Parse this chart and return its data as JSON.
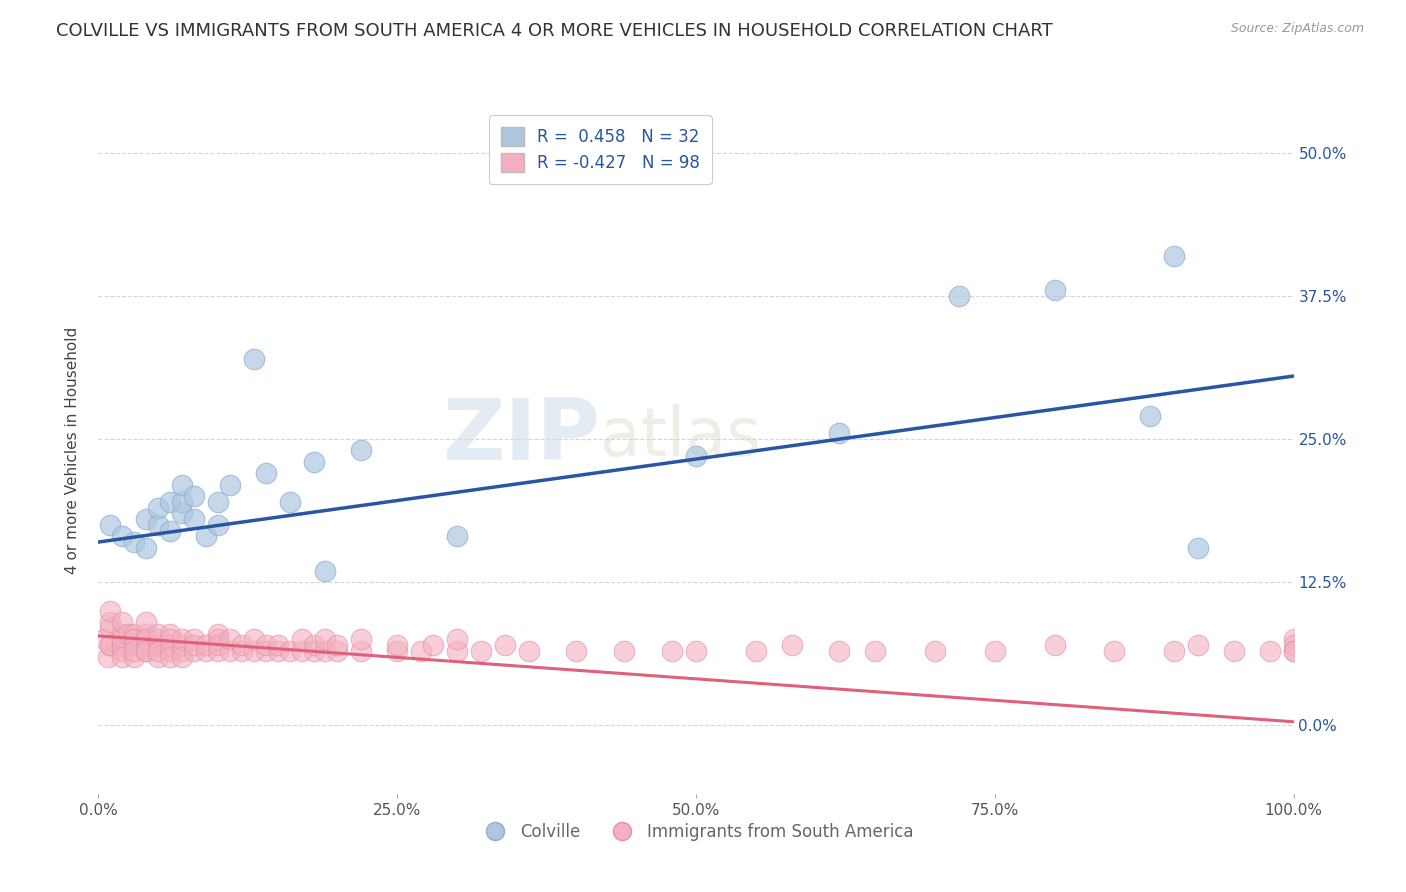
{
  "title": "COLVILLE VS IMMIGRANTS FROM SOUTH AMERICA 4 OR MORE VEHICLES IN HOUSEHOLD CORRELATION CHART",
  "source": "Source: ZipAtlas.com",
  "ylabel": "4 or more Vehicles in Household",
  "xlim": [
    0.0,
    1.0
  ],
  "ylim": [
    -0.06,
    0.54
  ],
  "xticks": [
    0.0,
    0.25,
    0.5,
    0.75,
    1.0
  ],
  "xtick_labels": [
    "0.0%",
    "25.0%",
    "50.0%",
    "75.0%",
    "100.0%"
  ],
  "yticks": [
    0.0,
    0.125,
    0.25,
    0.375,
    0.5
  ],
  "ytick_labels": [
    "0.0%",
    "12.5%",
    "25.0%",
    "37.5%",
    "50.0%"
  ],
  "blue_R": 0.458,
  "blue_N": 32,
  "pink_R": -0.427,
  "pink_N": 98,
  "blue_color": "#aec6e0",
  "blue_edge_color": "#8ab0d0",
  "blue_line_color": "#2955a3",
  "pink_color": "#f4b0c0",
  "pink_edge_color": "#e090a8",
  "pink_line_color": "#e0607a",
  "background_color": "#ffffff",
  "legend_label_blue": "Colville",
  "legend_label_pink": "Immigrants from South America",
  "blue_scatter_x": [
    0.01,
    0.02,
    0.03,
    0.04,
    0.04,
    0.05,
    0.05,
    0.06,
    0.06,
    0.07,
    0.07,
    0.07,
    0.08,
    0.08,
    0.09,
    0.1,
    0.1,
    0.11,
    0.13,
    0.14,
    0.16,
    0.18,
    0.19,
    0.22,
    0.3,
    0.5,
    0.62,
    0.72,
    0.8,
    0.88,
    0.9,
    0.92
  ],
  "blue_scatter_y": [
    0.175,
    0.165,
    0.16,
    0.18,
    0.155,
    0.175,
    0.19,
    0.195,
    0.17,
    0.185,
    0.195,
    0.21,
    0.18,
    0.2,
    0.165,
    0.195,
    0.175,
    0.21,
    0.32,
    0.22,
    0.195,
    0.23,
    0.135,
    0.24,
    0.165,
    0.235,
    0.255,
    0.375,
    0.38,
    0.27,
    0.41,
    0.155
  ],
  "pink_scatter_x": [
    0.005,
    0.008,
    0.01,
    0.01,
    0.01,
    0.01,
    0.01,
    0.02,
    0.02,
    0.02,
    0.02,
    0.02,
    0.02,
    0.025,
    0.03,
    0.03,
    0.03,
    0.03,
    0.03,
    0.04,
    0.04,
    0.04,
    0.04,
    0.04,
    0.04,
    0.05,
    0.05,
    0.05,
    0.05,
    0.05,
    0.06,
    0.06,
    0.06,
    0.06,
    0.06,
    0.07,
    0.07,
    0.07,
    0.07,
    0.08,
    0.08,
    0.08,
    0.09,
    0.09,
    0.1,
    0.1,
    0.1,
    0.1,
    0.11,
    0.11,
    0.12,
    0.12,
    0.13,
    0.13,
    0.14,
    0.14,
    0.15,
    0.15,
    0.16,
    0.17,
    0.17,
    0.18,
    0.18,
    0.19,
    0.19,
    0.2,
    0.2,
    0.22,
    0.22,
    0.25,
    0.25,
    0.27,
    0.28,
    0.3,
    0.3,
    0.32,
    0.34,
    0.36,
    0.4,
    0.44,
    0.48,
    0.5,
    0.55,
    0.58,
    0.62,
    0.65,
    0.7,
    0.75,
    0.8,
    0.85,
    0.9,
    0.92,
    0.95,
    0.98,
    1.0,
    1.0,
    1.0,
    1.0
  ],
  "pink_scatter_y": [
    0.075,
    0.06,
    0.085,
    0.07,
    0.07,
    0.09,
    0.1,
    0.08,
    0.07,
    0.065,
    0.09,
    0.075,
    0.06,
    0.08,
    0.06,
    0.07,
    0.08,
    0.075,
    0.065,
    0.07,
    0.065,
    0.08,
    0.09,
    0.075,
    0.065,
    0.07,
    0.075,
    0.06,
    0.08,
    0.065,
    0.07,
    0.08,
    0.065,
    0.075,
    0.06,
    0.07,
    0.065,
    0.075,
    0.06,
    0.065,
    0.075,
    0.07,
    0.065,
    0.07,
    0.065,
    0.08,
    0.075,
    0.07,
    0.065,
    0.075,
    0.065,
    0.07,
    0.065,
    0.075,
    0.065,
    0.07,
    0.065,
    0.07,
    0.065,
    0.065,
    0.075,
    0.065,
    0.07,
    0.065,
    0.075,
    0.065,
    0.07,
    0.065,
    0.075,
    0.065,
    0.07,
    0.065,
    0.07,
    0.065,
    0.075,
    0.065,
    0.07,
    0.065,
    0.065,
    0.065,
    0.065,
    0.065,
    0.065,
    0.07,
    0.065,
    0.065,
    0.065,
    0.065,
    0.07,
    0.065,
    0.065,
    0.07,
    0.065,
    0.065,
    0.075,
    0.065,
    0.07,
    0.065
  ],
  "watermark_zip": "ZIP",
  "watermark_atlas": "atlas",
  "title_fontsize": 13,
  "axis_label_fontsize": 11,
  "tick_fontsize": 11,
  "legend_fontsize": 12
}
